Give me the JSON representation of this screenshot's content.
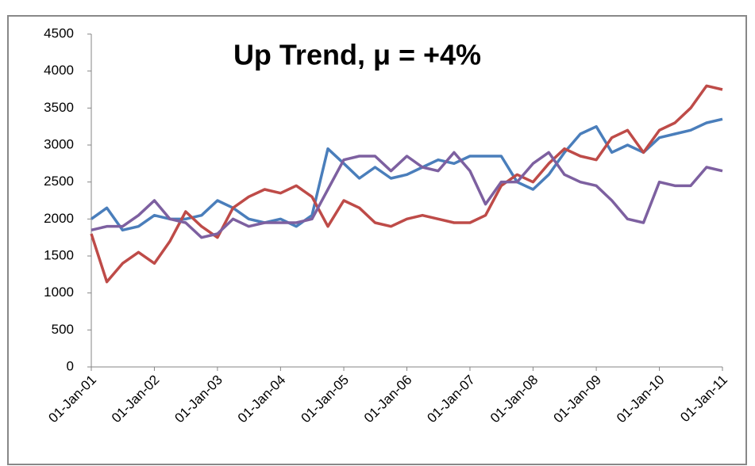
{
  "chart_data": {
    "type": "line",
    "title": "Up Trend, μ = +4%",
    "x": [
      "2001-01-01",
      "2001-04-01",
      "2001-07-01",
      "2001-10-01",
      "2002-01-01",
      "2002-04-01",
      "2002-07-01",
      "2002-10-01",
      "2003-01-01",
      "2003-04-01",
      "2003-07-01",
      "2003-10-01",
      "2004-01-01",
      "2004-04-01",
      "2004-07-01",
      "2004-10-01",
      "2005-01-01",
      "2005-04-01",
      "2005-07-01",
      "2005-10-01",
      "2006-01-01",
      "2006-04-01",
      "2006-07-01",
      "2006-10-01",
      "2007-01-01",
      "2007-04-01",
      "2007-07-01",
      "2007-10-01",
      "2008-01-01",
      "2008-04-01",
      "2008-07-01",
      "2008-10-01",
      "2009-01-01",
      "2009-04-01",
      "2009-07-01",
      "2009-10-01",
      "2010-01-01",
      "2010-04-01",
      "2010-07-01",
      "2010-10-01",
      "2011-01-01"
    ],
    "series": [
      {
        "color": "#4a7ebb",
        "values": [
          2000,
          2150,
          1850,
          1900,
          2050,
          2000,
          2000,
          2050,
          2250,
          2150,
          2000,
          1950,
          2000,
          1900,
          2050,
          2950,
          2750,
          2550,
          2700,
          2550,
          2600,
          2700,
          2800,
          2750,
          2850,
          2850,
          2850,
          2500,
          2400,
          2600,
          2900,
          3150,
          3250,
          2900,
          3000,
          2900,
          3100,
          3150,
          3200,
          3300,
          3350
        ]
      },
      {
        "color": "#be4b48",
        "values": [
          1800,
          1150,
          1400,
          1550,
          1400,
          1700,
          2100,
          1900,
          1750,
          2150,
          2300,
          2400,
          2350,
          2450,
          2300,
          1900,
          2250,
          2150,
          1950,
          1900,
          2000,
          2050,
          2000,
          1950,
          1950,
          2050,
          2450,
          2600,
          2500,
          2750,
          2950,
          2850,
          2800,
          3100,
          3200,
          2900,
          3200,
          3300,
          3500,
          3800,
          3750
        ]
      },
      {
        "color": "#7d60a0",
        "values": [
          1850,
          1900,
          1900,
          2050,
          2250,
          2000,
          1950,
          1750,
          1800,
          2000,
          1900,
          1950,
          1950,
          1950,
          2000,
          2400,
          2800,
          2850,
          2850,
          2650,
          2850,
          2700,
          2650,
          2900,
          2650,
          2200,
          2500,
          2500,
          2750,
          2900,
          2600,
          2500,
          2450,
          2250,
          2000,
          1950,
          2500,
          2450,
          2450,
          2700,
          2650
        ]
      }
    ],
    "xlim": [
      "2001-01-01",
      "2011-01-01"
    ],
    "xticks": [
      {
        "value": "2001-01-01",
        "label": "01-Jan-01"
      },
      {
        "value": "2002-01-01",
        "label": "01-Jan-02"
      },
      {
        "value": "2003-01-01",
        "label": "01-Jan-03"
      },
      {
        "value": "2004-01-01",
        "label": "01-Jan-04"
      },
      {
        "value": "2005-01-01",
        "label": "01-Jan-05"
      },
      {
        "value": "2006-01-01",
        "label": "01-Jan-06"
      },
      {
        "value": "2007-01-01",
        "label": "01-Jan-07"
      },
      {
        "value": "2008-01-01",
        "label": "01-Jan-08"
      },
      {
        "value": "2009-01-01",
        "label": "01-Jan-09"
      },
      {
        "value": "2010-01-01",
        "label": "01-Jan-10"
      },
      {
        "value": "2011-01-01",
        "label": "01-Jan-11"
      }
    ],
    "ylim": [
      0,
      4500
    ],
    "yticks": [
      0,
      500,
      1000,
      1500,
      2000,
      2500,
      3000,
      3500,
      4000,
      4500
    ],
    "grid": false
  }
}
